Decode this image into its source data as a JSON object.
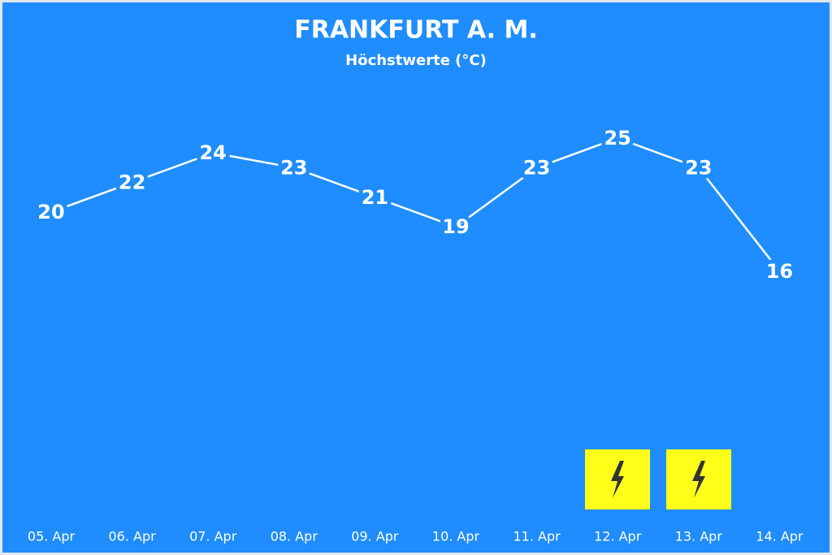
{
  "chart_data": {
    "type": "line",
    "title": "FRANKFURT A. M.",
    "subtitle": "Höchstwerte (°C)",
    "categories": [
      "05. Apr",
      "06. Apr",
      "07. Apr",
      "08. Apr",
      "09. Apr",
      "10. Apr",
      "11. Apr",
      "12. Apr",
      "13. Apr",
      "14. Apr"
    ],
    "values": [
      20,
      22,
      24,
      23,
      21,
      19,
      23,
      25,
      23,
      16
    ],
    "color": "#ffffff",
    "background": "#1f8dff"
  }
}
